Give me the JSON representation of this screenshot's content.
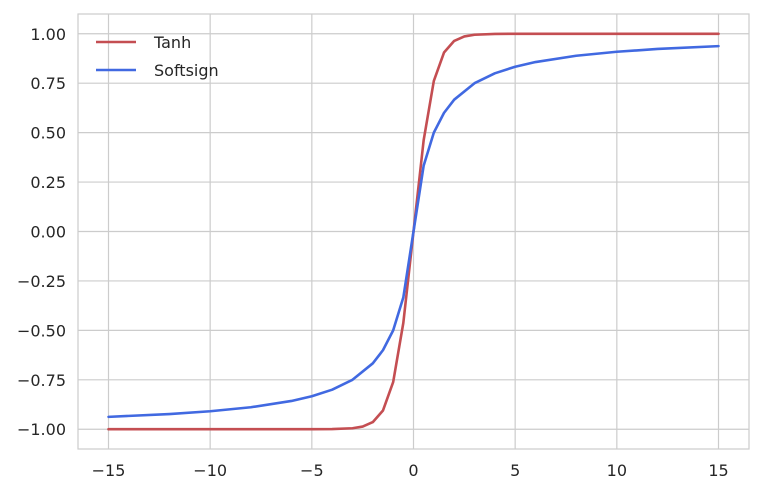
{
  "chart_data": {
    "type": "line",
    "title": "",
    "xlabel": "",
    "ylabel": "",
    "xlim": [
      -16.5,
      16.5
    ],
    "ylim": [
      -1.1,
      1.1
    ],
    "grid": true,
    "legend_position": "top-left",
    "x_ticks": [
      -15,
      -10,
      -5,
      0,
      5,
      10,
      15
    ],
    "x_tick_labels": [
      "−15",
      "−10",
      "−5",
      "0",
      "5",
      "10",
      "15"
    ],
    "y_ticks": [
      1.0,
      0.75,
      0.5,
      0.25,
      0.0,
      -0.25,
      -0.5,
      -0.75,
      -1.0
    ],
    "y_tick_labels": [
      "1.00",
      "0.75",
      "0.50",
      "0.25",
      "0.00",
      "−0.25",
      "−0.50",
      "−0.75",
      "−1.00"
    ],
    "series": [
      {
        "name": "Tanh",
        "color": "#c44e52",
        "x": [
          -15,
          -10,
          -5,
          -4,
          -3,
          -2.5,
          -2,
          -1.5,
          -1,
          -0.5,
          0,
          0.5,
          1,
          1.5,
          2,
          2.5,
          3,
          4,
          5,
          10,
          15
        ],
        "y": [
          -1.0,
          -1.0,
          -0.9999,
          -0.9993,
          -0.9951,
          -0.9866,
          -0.964,
          -0.9051,
          -0.7616,
          -0.4621,
          0.0,
          0.4621,
          0.7616,
          0.9051,
          0.964,
          0.9866,
          0.9951,
          0.9993,
          0.9999,
          1.0,
          1.0
        ]
      },
      {
        "name": "Softsign",
        "color": "#4169e1",
        "x": [
          -15,
          -12,
          -10,
          -8,
          -6,
          -5,
          -4,
          -3,
          -2,
          -1.5,
          -1,
          -0.5,
          0,
          0.5,
          1,
          1.5,
          2,
          3,
          4,
          5,
          6,
          8,
          10,
          12,
          15
        ],
        "y": [
          -0.9375,
          -0.9231,
          -0.9091,
          -0.8889,
          -0.8571,
          -0.8333,
          -0.8,
          -0.75,
          -0.6667,
          -0.6,
          -0.5,
          -0.3333,
          0.0,
          0.3333,
          0.5,
          0.6,
          0.6667,
          0.75,
          0.8,
          0.8333,
          0.8571,
          0.8889,
          0.9091,
          0.9231,
          0.9375
        ]
      }
    ]
  }
}
